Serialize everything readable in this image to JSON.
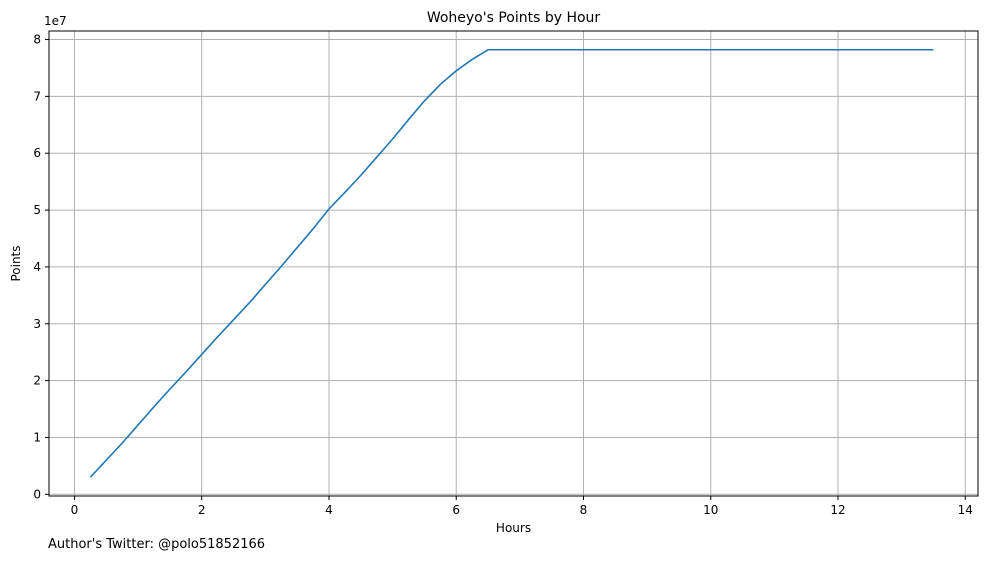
{
  "chart_data": {
    "type": "line",
    "title": "Woheyo's Points by Hour",
    "xlabel": "Hours",
    "ylabel": "Points",
    "y_offset_label": "1e7",
    "xlim": [
      -0.4,
      14.2
    ],
    "ylim": [
      -300000,
      81500000
    ],
    "x_ticks": [
      0,
      2,
      4,
      6,
      8,
      10,
      12,
      14
    ],
    "y_ticks": [
      0,
      10000000,
      20000000,
      30000000,
      40000000,
      50000000,
      60000000,
      70000000,
      80000000
    ],
    "y_tick_labels": [
      "0",
      "1",
      "2",
      "3",
      "4",
      "5",
      "6",
      "7",
      "8"
    ],
    "grid": true,
    "line_color": "#1f77b4",
    "series": [
      {
        "x": [
          0.25,
          0.5,
          0.75,
          1.0,
          1.25,
          1.5,
          1.75,
          2.0,
          2.25,
          2.5,
          2.75,
          3.0,
          3.25,
          3.5,
          3.75,
          4.0,
          4.25,
          4.5,
          4.75,
          5.0,
          5.25,
          5.5,
          5.75,
          6.0,
          6.25,
          6.5,
          7.0,
          8.0,
          9.0,
          10.0,
          11.0,
          12.0,
          13.0,
          13.5
        ],
        "y": [
          3000000,
          6000000,
          9000000,
          12200000,
          15400000,
          18500000,
          21500000,
          24600000,
          27700000,
          30700000,
          33700000,
          36900000,
          40100000,
          43400000,
          46700000,
          50200000,
          53100000,
          56100000,
          59300000,
          62500000,
          65900000,
          69200000,
          72100000,
          74500000,
          76500000,
          78200000,
          78200000,
          78200000,
          78200000,
          78200000,
          78200000,
          78200000,
          78200000,
          78200000
        ]
      }
    ]
  },
  "footer": {
    "author": "Author's Twitter: @polo51852166"
  }
}
